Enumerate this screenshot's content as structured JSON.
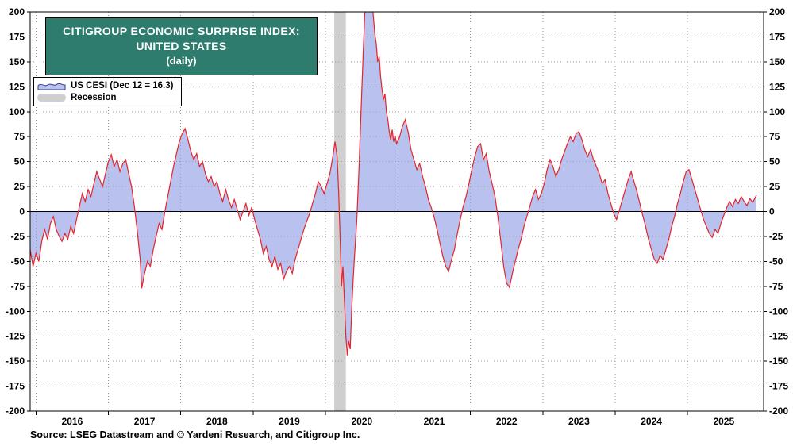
{
  "title": {
    "line1": "CITIGROUP ECONOMIC SURPRISE INDEX:",
    "line2": "UNITED STATES",
    "line3": "(daily)"
  },
  "legend": {
    "series_label": "US CESI (Dec 12 = 16.3)",
    "recession_label": "Recession"
  },
  "source": "Source: LSEG Datastream and © Yardeni Research, and Citigroup Inc.",
  "colors": {
    "title_bg": "#2d7c6d",
    "area_fill": "#b9c1ef",
    "line": "#e62429",
    "swatch_outline": "#33418f",
    "recession": "#cfcfcf",
    "grid": "#9a9a9a",
    "axis": "#000000"
  },
  "chart_data": {
    "type": "area",
    "title": "Citigroup Economic Surprise Index: United States (daily)",
    "xlabel": "",
    "ylabel": "",
    "ylim": [
      -200,
      200
    ],
    "y_tick_step": 25,
    "y_tick_labels": [
      "200",
      "175",
      "150",
      "125",
      "100",
      "75",
      "50",
      "25",
      "0",
      "-25",
      "-50",
      "-75",
      "-100",
      "-125",
      "-150",
      "-175",
      "-200"
    ],
    "x_domain": [
      2015.92,
      2026.05
    ],
    "year_labels": [
      "2016",
      "2017",
      "2018",
      "2019",
      "2020",
      "2021",
      "2022",
      "2023",
      "2024",
      "2025"
    ],
    "grid": true,
    "legend_position": "top-left",
    "recession_bands": [
      [
        2020.12,
        2020.28
      ]
    ],
    "last_point": {
      "date": "Dec 12",
      "value": 16.3
    },
    "series": [
      {
        "name": "US CESI",
        "points": [
          [
            2015.92,
            -38
          ],
          [
            2015.96,
            -55
          ],
          [
            2016.0,
            -42
          ],
          [
            2016.04,
            -50
          ],
          [
            2016.08,
            -30
          ],
          [
            2016.12,
            -18
          ],
          [
            2016.16,
            -28
          ],
          [
            2016.2,
            -12
          ],
          [
            2016.24,
            -5
          ],
          [
            2016.28,
            -18
          ],
          [
            2016.32,
            -25
          ],
          [
            2016.36,
            -30
          ],
          [
            2016.4,
            -22
          ],
          [
            2016.44,
            -28
          ],
          [
            2016.48,
            -15
          ],
          [
            2016.52,
            -22
          ],
          [
            2016.56,
            -8
          ],
          [
            2016.6,
            5
          ],
          [
            2016.64,
            18
          ],
          [
            2016.68,
            10
          ],
          [
            2016.72,
            22
          ],
          [
            2016.76,
            15
          ],
          [
            2016.8,
            28
          ],
          [
            2016.84,
            40
          ],
          [
            2016.88,
            32
          ],
          [
            2016.92,
            25
          ],
          [
            2016.96,
            38
          ],
          [
            2017.0,
            50
          ],
          [
            2017.04,
            57
          ],
          [
            2017.08,
            45
          ],
          [
            2017.12,
            52
          ],
          [
            2017.16,
            40
          ],
          [
            2017.2,
            48
          ],
          [
            2017.24,
            52
          ],
          [
            2017.28,
            38
          ],
          [
            2017.32,
            25
          ],
          [
            2017.36,
            5
          ],
          [
            2017.4,
            -20
          ],
          [
            2017.44,
            -48
          ],
          [
            2017.46,
            -77
          ],
          [
            2017.5,
            -62
          ],
          [
            2017.54,
            -50
          ],
          [
            2017.58,
            -55
          ],
          [
            2017.62,
            -38
          ],
          [
            2017.66,
            -25
          ],
          [
            2017.7,
            -12
          ],
          [
            2017.74,
            -18
          ],
          [
            2017.78,
            0
          ],
          [
            2017.82,
            15
          ],
          [
            2017.86,
            30
          ],
          [
            2017.9,
            45
          ],
          [
            2017.94,
            58
          ],
          [
            2017.98,
            70
          ],
          [
            2018.02,
            78
          ],
          [
            2018.06,
            83
          ],
          [
            2018.1,
            72
          ],
          [
            2018.14,
            60
          ],
          [
            2018.18,
            52
          ],
          [
            2018.22,
            58
          ],
          [
            2018.26,
            45
          ],
          [
            2018.3,
            50
          ],
          [
            2018.34,
            38
          ],
          [
            2018.38,
            30
          ],
          [
            2018.42,
            35
          ],
          [
            2018.46,
            25
          ],
          [
            2018.5,
            30
          ],
          [
            2018.54,
            18
          ],
          [
            2018.58,
            10
          ],
          [
            2018.62,
            22
          ],
          [
            2018.66,
            12
          ],
          [
            2018.7,
            4
          ],
          [
            2018.74,
            12
          ],
          [
            2018.78,
            2
          ],
          [
            2018.82,
            -8
          ],
          [
            2018.86,
            0
          ],
          [
            2018.9,
            8
          ],
          [
            2018.94,
            -4
          ],
          [
            2018.98,
            4
          ],
          [
            2019.02,
            -8
          ],
          [
            2019.06,
            -18
          ],
          [
            2019.1,
            -28
          ],
          [
            2019.14,
            -42
          ],
          [
            2019.18,
            -35
          ],
          [
            2019.22,
            -48
          ],
          [
            2019.26,
            -55
          ],
          [
            2019.3,
            -45
          ],
          [
            2019.34,
            -58
          ],
          [
            2019.38,
            -52
          ],
          [
            2019.42,
            -68
          ],
          [
            2019.46,
            -60
          ],
          [
            2019.5,
            -55
          ],
          [
            2019.54,
            -62
          ],
          [
            2019.58,
            -48
          ],
          [
            2019.62,
            -38
          ],
          [
            2019.66,
            -28
          ],
          [
            2019.7,
            -18
          ],
          [
            2019.74,
            -10
          ],
          [
            2019.78,
            -2
          ],
          [
            2019.82,
            8
          ],
          [
            2019.86,
            18
          ],
          [
            2019.9,
            30
          ],
          [
            2019.94,
            25
          ],
          [
            2019.98,
            18
          ],
          [
            2020.02,
            28
          ],
          [
            2020.06,
            38
          ],
          [
            2020.1,
            55
          ],
          [
            2020.13,
            70
          ],
          [
            2020.16,
            55
          ],
          [
            2020.18,
            20
          ],
          [
            2020.2,
            -25
          ],
          [
            2020.22,
            -75
          ],
          [
            2020.24,
            -55
          ],
          [
            2020.26,
            -90
          ],
          [
            2020.28,
            -125
          ],
          [
            2020.3,
            -144
          ],
          [
            2020.32,
            -130
          ],
          [
            2020.34,
            -138
          ],
          [
            2020.36,
            -100
          ],
          [
            2020.38,
            -70
          ],
          [
            2020.4,
            -45
          ],
          [
            2020.43,
            -10
          ],
          [
            2020.46,
            40
          ],
          [
            2020.49,
            100
          ],
          [
            2020.52,
            160
          ],
          [
            2020.55,
            215
          ],
          [
            2020.58,
            255
          ],
          [
            2020.61,
            240
          ],
          [
            2020.64,
            210
          ],
          [
            2020.66,
            195
          ],
          [
            2020.68,
            178
          ],
          [
            2020.7,
            168
          ],
          [
            2020.72,
            150
          ],
          [
            2020.74,
            155
          ],
          [
            2020.76,
            135
          ],
          [
            2020.78,
            122
          ],
          [
            2020.8,
            112
          ],
          [
            2020.82,
            118
          ],
          [
            2020.84,
            100
          ],
          [
            2020.86,
            92
          ],
          [
            2020.88,
            80
          ],
          [
            2020.9,
            72
          ],
          [
            2020.92,
            82
          ],
          [
            2020.94,
            70
          ],
          [
            2020.96,
            76
          ],
          [
            2020.98,
            68
          ],
          [
            2021.02,
            74
          ],
          [
            2021.06,
            85
          ],
          [
            2021.1,
            92
          ],
          [
            2021.14,
            80
          ],
          [
            2021.18,
            62
          ],
          [
            2021.22,
            52
          ],
          [
            2021.26,
            42
          ],
          [
            2021.3,
            48
          ],
          [
            2021.34,
            35
          ],
          [
            2021.38,
            25
          ],
          [
            2021.42,
            12
          ],
          [
            2021.46,
            4
          ],
          [
            2021.5,
            -6
          ],
          [
            2021.54,
            -18
          ],
          [
            2021.58,
            -32
          ],
          [
            2021.62,
            -45
          ],
          [
            2021.66,
            -55
          ],
          [
            2021.7,
            -60
          ],
          [
            2021.74,
            -48
          ],
          [
            2021.78,
            -38
          ],
          [
            2021.82,
            -22
          ],
          [
            2021.86,
            -8
          ],
          [
            2021.9,
            5
          ],
          [
            2021.94,
            15
          ],
          [
            2021.98,
            28
          ],
          [
            2022.02,
            42
          ],
          [
            2022.06,
            55
          ],
          [
            2022.1,
            65
          ],
          [
            2022.14,
            68
          ],
          [
            2022.18,
            52
          ],
          [
            2022.22,
            58
          ],
          [
            2022.26,
            40
          ],
          [
            2022.3,
            28
          ],
          [
            2022.34,
            15
          ],
          [
            2022.38,
            -5
          ],
          [
            2022.42,
            -30
          ],
          [
            2022.46,
            -55
          ],
          [
            2022.5,
            -72
          ],
          [
            2022.54,
            -76
          ],
          [
            2022.58,
            -62
          ],
          [
            2022.62,
            -50
          ],
          [
            2022.66,
            -38
          ],
          [
            2022.7,
            -28
          ],
          [
            2022.74,
            -15
          ],
          [
            2022.78,
            -5
          ],
          [
            2022.82,
            5
          ],
          [
            2022.86,
            15
          ],
          [
            2022.9,
            22
          ],
          [
            2022.94,
            12
          ],
          [
            2022.98,
            18
          ],
          [
            2023.02,
            28
          ],
          [
            2023.06,
            42
          ],
          [
            2023.1,
            52
          ],
          [
            2023.14,
            45
          ],
          [
            2023.18,
            35
          ],
          [
            2023.22,
            42
          ],
          [
            2023.26,
            52
          ],
          [
            2023.3,
            60
          ],
          [
            2023.34,
            68
          ],
          [
            2023.38,
            75
          ],
          [
            2023.42,
            70
          ],
          [
            2023.46,
            78
          ],
          [
            2023.5,
            80
          ],
          [
            2023.54,
            72
          ],
          [
            2023.58,
            62
          ],
          [
            2023.62,
            55
          ],
          [
            2023.66,
            62
          ],
          [
            2023.7,
            52
          ],
          [
            2023.74,
            45
          ],
          [
            2023.78,
            38
          ],
          [
            2023.82,
            28
          ],
          [
            2023.86,
            32
          ],
          [
            2023.9,
            18
          ],
          [
            2023.94,
            8
          ],
          [
            2023.98,
            -2
          ],
          [
            2024.02,
            -8
          ],
          [
            2024.06,
            2
          ],
          [
            2024.1,
            12
          ],
          [
            2024.14,
            22
          ],
          [
            2024.18,
            32
          ],
          [
            2024.22,
            40
          ],
          [
            2024.26,
            30
          ],
          [
            2024.3,
            20
          ],
          [
            2024.34,
            8
          ],
          [
            2024.38,
            -4
          ],
          [
            2024.42,
            -15
          ],
          [
            2024.46,
            -28
          ],
          [
            2024.5,
            -38
          ],
          [
            2024.54,
            -48
          ],
          [
            2024.58,
            -52
          ],
          [
            2024.62,
            -44
          ],
          [
            2024.66,
            -48
          ],
          [
            2024.7,
            -38
          ],
          [
            2024.74,
            -28
          ],
          [
            2024.78,
            -15
          ],
          [
            2024.82,
            -5
          ],
          [
            2024.86,
            8
          ],
          [
            2024.9,
            18
          ],
          [
            2024.94,
            30
          ],
          [
            2024.98,
            40
          ],
          [
            2025.02,
            42
          ],
          [
            2025.06,
            32
          ],
          [
            2025.1,
            22
          ],
          [
            2025.14,
            12
          ],
          [
            2025.18,
            2
          ],
          [
            2025.22,
            -8
          ],
          [
            2025.26,
            -15
          ],
          [
            2025.3,
            -22
          ],
          [
            2025.34,
            -26
          ],
          [
            2025.38,
            -18
          ],
          [
            2025.42,
            -22
          ],
          [
            2025.46,
            -12
          ],
          [
            2025.5,
            -4
          ],
          [
            2025.54,
            4
          ],
          [
            2025.58,
            10
          ],
          [
            2025.62,
            5
          ],
          [
            2025.66,
            12
          ],
          [
            2025.7,
            8
          ],
          [
            2025.74,
            15
          ],
          [
            2025.78,
            10
          ],
          [
            2025.82,
            6
          ],
          [
            2025.86,
            13
          ],
          [
            2025.9,
            9
          ],
          [
            2025.95,
            16.3
          ]
        ]
      }
    ]
  }
}
